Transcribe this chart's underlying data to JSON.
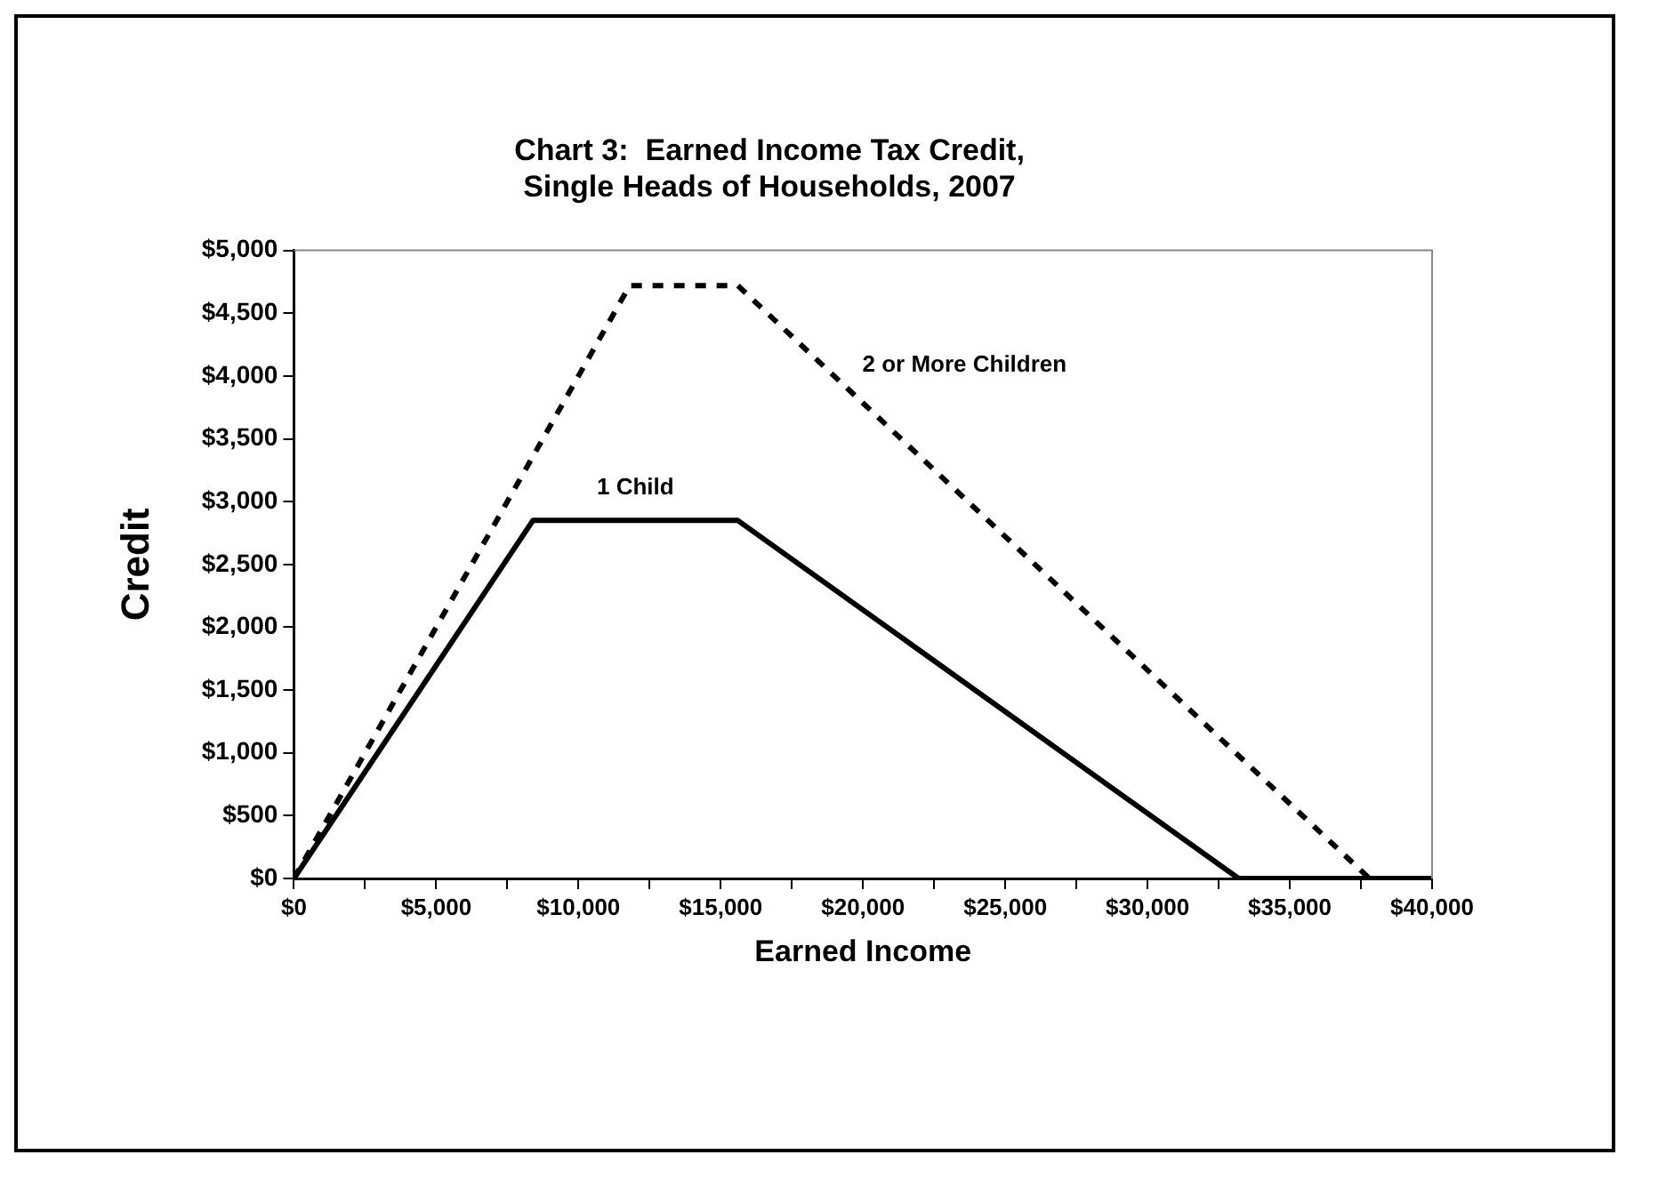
{
  "chart_data": {
    "type": "line",
    "title": "Chart 3:  Earned Income Tax Credit,\nSingle Heads of Households, 2007",
    "xlabel": "Earned Income",
    "ylabel": "Credit",
    "xlim": [
      0,
      40000
    ],
    "xticks": [
      {
        "value": 0,
        "label": "$0"
      },
      {
        "value": 2500,
        "label": null
      },
      {
        "value": 5000,
        "label": "$5,000"
      },
      {
        "value": 7500,
        "label": null
      },
      {
        "value": 10000,
        "label": "$10,000"
      },
      {
        "value": 12500,
        "label": null
      },
      {
        "value": 15000,
        "label": "$15,000"
      },
      {
        "value": 17500,
        "label": null
      },
      {
        "value": 20000,
        "label": "$20,000"
      },
      {
        "value": 22500,
        "label": null
      },
      {
        "value": 25000,
        "label": "$25,000"
      },
      {
        "value": 27500,
        "label": null
      },
      {
        "value": 30000,
        "label": "$30,000"
      },
      {
        "value": 32500,
        "label": null
      },
      {
        "value": 35000,
        "label": "$35,000"
      },
      {
        "value": 37500,
        "label": null
      },
      {
        "value": 40000,
        "label": "$40,000"
      }
    ],
    "ylim": [
      0,
      5000
    ],
    "yticks": [
      {
        "value": 0,
        "label": "$0"
      },
      {
        "value": 500,
        "label": "$500"
      },
      {
        "value": 1000,
        "label": "$1,000"
      },
      {
        "value": 1500,
        "label": "$1,500"
      },
      {
        "value": 2000,
        "label": "$2,000"
      },
      {
        "value": 2500,
        "label": "$2,500"
      },
      {
        "value": 3000,
        "label": "$3,000"
      },
      {
        "value": 3500,
        "label": "$3,500"
      },
      {
        "value": 4000,
        "label": "$4,000"
      },
      {
        "value": 4500,
        "label": "$4,500"
      },
      {
        "value": 5000,
        "label": "$5,000"
      }
    ],
    "grid": false,
    "legend": false,
    "marker": "none",
    "series": [
      {
        "name": "1 Child",
        "color": "#000000",
        "line_style": "solid",
        "x": [
          0,
          8400,
          15600,
          33200,
          40000
        ],
        "values": [
          0,
          2850,
          2850,
          0,
          0
        ]
      },
      {
        "name": "2 or More Children",
        "color": "#000000",
        "line_style": "dashed",
        "x": [
          0,
          11800,
          15600,
          37800,
          40000
        ],
        "values": [
          0,
          4720,
          4720,
          0,
          0
        ]
      }
    ]
  }
}
